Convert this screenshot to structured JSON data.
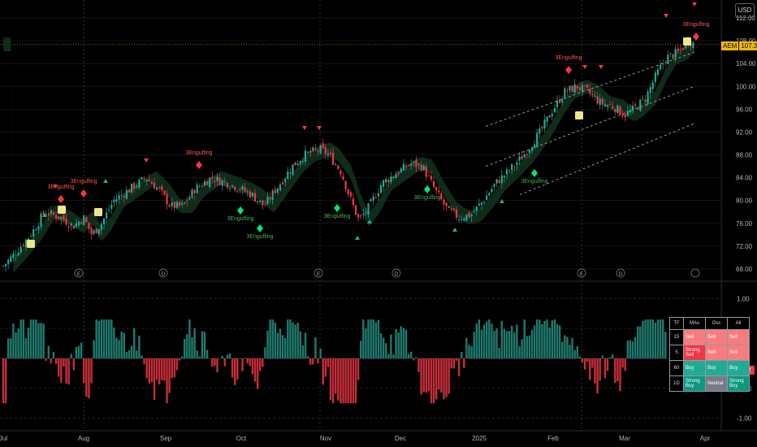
{
  "ticker": "AEM",
  "currency": "USD",
  "last_price": "107.36",
  "oscillator_last": "-0.22",
  "event_markers": [
    "E",
    "D",
    "E",
    "D",
    "E",
    "D"
  ],
  "x_labels": [
    "Jul",
    "Aug",
    "Sep",
    "Oct",
    "Nov",
    "Dec",
    "2025",
    "Feb",
    "Mar",
    "Apr"
  ],
  "price_ticks": [
    "112.00",
    "108.00",
    "104.00",
    "100.00",
    "96.00",
    "92.00",
    "88.00",
    "84.00",
    "80.00",
    "76.00",
    "72.00",
    "68.00"
  ],
  "osc_ticks": [
    "1.00",
    "0.50",
    "0.00",
    "-0.50",
    "-1.00"
  ],
  "pattern_label": "3Engulfing",
  "rating_table": {
    "headers": [
      "TF",
      "MAs",
      "Osc",
      "All"
    ],
    "rows": [
      {
        "tf": "15",
        "mas": "Sell",
        "osc": "Sell",
        "all": "Sell",
        "cls": [
          "ssell",
          "ssell",
          "ssell"
        ]
      },
      {
        "tf": "5",
        "mas": "Strong Sell",
        "osc": "Sell",
        "all": "Sell",
        "cls": [
          "strsell",
          "ssell",
          "ssell"
        ]
      },
      {
        "tf": "60",
        "mas": "Buy",
        "osc": "Buy",
        "all": "Buy",
        "cls": [
          "buy",
          "buy",
          "buy"
        ]
      },
      {
        "tf": "1D",
        "mas": "Strong Buy",
        "osc": "Neutral",
        "all": "Strong Buy",
        "cls": [
          "strbuy",
          "neutral",
          "strbuy"
        ]
      }
    ]
  },
  "colors": {
    "up": "#22ab94",
    "down": "#f23645",
    "ma_up": "#1b3a24",
    "ma_down": "#3a1414",
    "grid": "#1e222d"
  },
  "chart_data": [
    {
      "type": "candlestick",
      "ticker": "AEM",
      "x_axis": [
        "Jul",
        "Aug",
        "Sep",
        "Oct",
        "Nov",
        "Dec",
        "2025",
        "Feb",
        "Mar",
        "Apr"
      ],
      "y_ticks": [
        68,
        72,
        76,
        80,
        84,
        88,
        92,
        96,
        100,
        104,
        108,
        112
      ],
      "ylim": [
        66,
        114
      ],
      "last_price": 107.36,
      "approx_close_path": [
        {
          "x": "Jul",
          "y": 68.5
        },
        {
          "x": "Jul",
          "y": 74
        },
        {
          "x": "Jul",
          "y": 78
        },
        {
          "x": "Aug",
          "y": 76
        },
        {
          "x": "Aug",
          "y": 74
        },
        {
          "x": "Aug",
          "y": 80
        },
        {
          "x": "Aug",
          "y": 84
        },
        {
          "x": "Sep",
          "y": 83
        },
        {
          "x": "Sep",
          "y": 78
        },
        {
          "x": "Sep",
          "y": 81
        },
        {
          "x": "Sep",
          "y": 84
        },
        {
          "x": "Oct",
          "y": 82
        },
        {
          "x": "Oct",
          "y": 80
        },
        {
          "x": "Oct",
          "y": 84
        },
        {
          "x": "Oct",
          "y": 88
        },
        {
          "x": "Nov",
          "y": 89
        },
        {
          "x": "Nov",
          "y": 86
        },
        {
          "x": "Nov",
          "y": 80
        },
        {
          "x": "Nov",
          "y": 76
        },
        {
          "x": "Nov",
          "y": 80
        },
        {
          "x": "Dec",
          "y": 84
        },
        {
          "x": "Dec",
          "y": 86
        },
        {
          "x": "Dec",
          "y": 83
        },
        {
          "x": "Dec",
          "y": 78
        },
        {
          "x": "2025",
          "y": 77
        },
        {
          "x": "2025",
          "y": 82
        },
        {
          "x": "2025",
          "y": 86
        },
        {
          "x": "2025",
          "y": 90
        },
        {
          "x": "Feb",
          "y": 94
        },
        {
          "x": "Feb",
          "y": 99
        },
        {
          "x": "Feb",
          "y": 100
        },
        {
          "x": "Feb",
          "y": 97
        },
        {
          "x": "Mar",
          "y": 95
        },
        {
          "x": "Mar",
          "y": 98
        },
        {
          "x": "Mar",
          "y": 102
        },
        {
          "x": "Mar",
          "y": 106
        },
        {
          "x": "Apr",
          "y": 107.36
        }
      ]
    },
    {
      "type": "bar",
      "name_printed": "",
      "y_ticks": [
        1.0,
        0.5,
        0.0,
        -0.5,
        -1.0
      ],
      "ylim": [
        -1.1,
        1.1
      ],
      "last_value": -0.22
    }
  ]
}
